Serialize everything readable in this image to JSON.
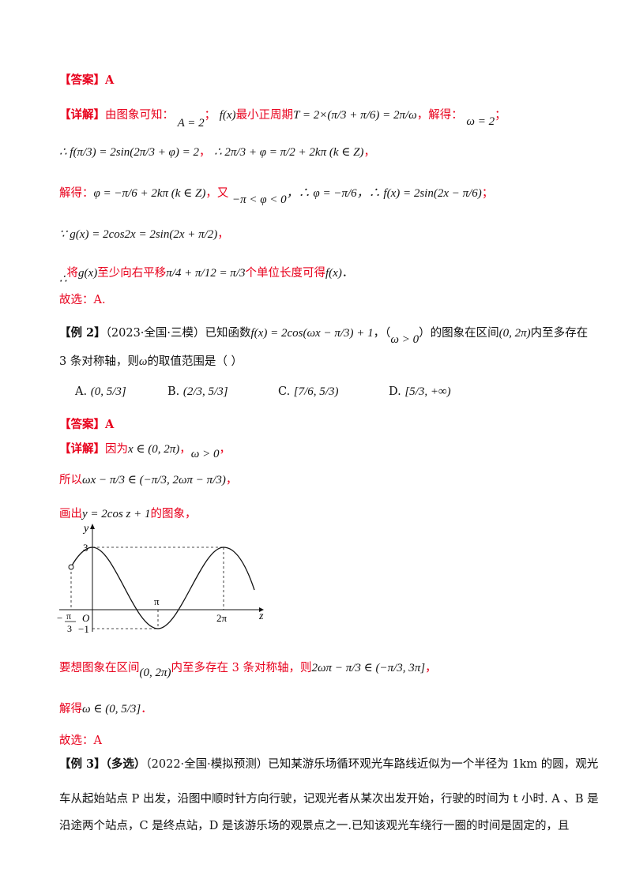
{
  "answer1": {
    "label": "【答案】",
    "value": "A"
  },
  "detail1": {
    "label": "【详解】",
    "line1_text": "由图象可知：",
    "line1_m1": "A = 2",
    "line1_sep": "；",
    "line1_m2": "f(x)",
    "line1_text2": "最小正周期",
    "line1_m3": "T = 2×(π/3 + π/6) = 2π/ω",
    "line1_text3": "，解得：",
    "line1_m4": "ω = 2",
    "line1_end": "；",
    "line2_m1": "∴ f(π/3) = 2sin(2π/3 + φ) = 2",
    "line2_mid": "，",
    "line2_m2": "∴ 2π/3 + φ = π/2 + 2kπ (k ∈ Z)",
    "line2_end": "，",
    "line3_text": "解得：",
    "line3_m1": "φ = −π/6 + 2kπ (k ∈ Z)",
    "line3_text2": "，又",
    "line3_m2": "−π < φ < 0",
    "line3_m3": "，∴ φ = −π/6",
    "line3_m4": "，∴ f(x) = 2sin(2x − π/6)",
    "line3_end": "；",
    "line4_m1": "∵ g(x) = 2cos2x = 2sin(2x + π/2)",
    "line4_end": "，",
    "line5_m0": "∴",
    "line5_text": "将",
    "line5_m1": "g(x)",
    "line5_text2": "至少向右平移",
    "line5_m2": "π/4 + π/12 = π/3",
    "line5_text3": "个单位长度可得",
    "line5_m3": "f(x)",
    "line5_end": "．",
    "choose": "故选：A."
  },
  "example2": {
    "label": "【例 2】",
    "source": "（2023·全国·三模）",
    "text1": "已知函数",
    "m1": "f(x) = 2cos(ωx − π/3) + 1",
    "text2": "，（",
    "m2": "ω > 0",
    "text3": "）的图象在区间",
    "m3": "(0, 2π)",
    "text4": "内至多存在",
    "line2_text": "3 条对称轴，则",
    "line2_m": "ω",
    "line2_text2": "的取值范围是（    ）",
    "choices": [
      {
        "label": "A.",
        "value": "(0, 5/3]"
      },
      {
        "label": "B.",
        "value": "(2/3, 5/3]"
      },
      {
        "label": "C.",
        "value": "[7/6, 5/3)"
      },
      {
        "label": "D.",
        "value": "[5/3, +∞)"
      }
    ]
  },
  "answer2": {
    "label": "【答案】",
    "value": "A"
  },
  "detail2": {
    "label": "【详解】",
    "line1_text": "因为",
    "line1_m1": "x ∈ (0, 2π)",
    "line1_mid": "，",
    "line1_m2": "ω > 0",
    "line1_end": "，",
    "line2_text": "所以",
    "line2_m": "ωx − π/3 ∈ (−π/3, 2ωπ − π/3)",
    "line2_end": "，",
    "line3_text": "画出",
    "line3_m": "y = 2cos z + 1",
    "line3_text2": "的图象，",
    "line4_text": "要想图象在区间",
    "line4_m1": "(0, 2π)",
    "line4_text2": "内至多存在 3 条对称轴，则",
    "line4_m2": "2ωπ − π/3 ∈ (−π/3, 3π]",
    "line4_end": "，",
    "line5_text": "解得",
    "line5_m": "ω ∈ (0, 5/3]",
    "line5_end": "．",
    "choose": "故选：A"
  },
  "graph": {
    "y_axis": "y",
    "z_axis": "z",
    "origin": "O",
    "y_top": "3",
    "y_bottom": "−1",
    "pi": "π",
    "two_pi": "2π",
    "neg_pi": "π",
    "neg_sign": "−",
    "three": "3"
  },
  "example3": {
    "label": "【例 3】",
    "multi": "（多选）",
    "source": "（2022·全国·模拟预测）",
    "line1": "已知某游乐场循环观光车路线近似为一个半径为 1km 的圆，观光",
    "line2": "车从起始站点 P 出发，沿图中顺时针方向行驶，记观光者从某次出发开始，行驶的时间为 t 小时. A 、B 是",
    "line3": "沿途两个站点，C 是终点站，D 是该游乐场的观景点之一.已知该观光车绕行一圈的时间是固定的，且"
  },
  "colors": {
    "accent": "#e8001c",
    "text": "#111111"
  }
}
